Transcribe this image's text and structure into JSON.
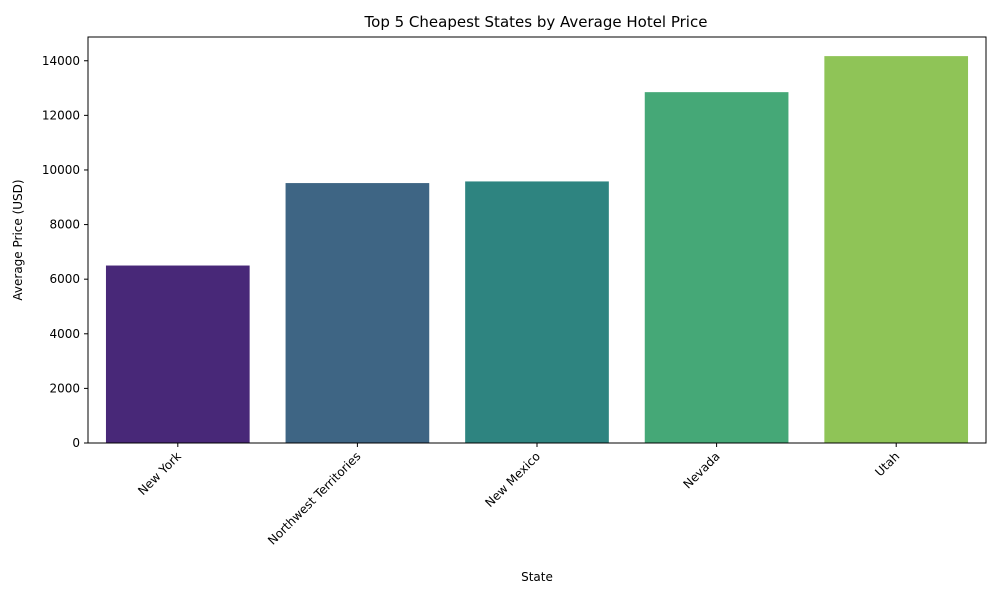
{
  "chart_data": {
    "type": "bar",
    "title": "Top 5 Cheapest States by Average Hotel Price",
    "xlabel": "State",
    "ylabel": "Average Price (USD)",
    "categories": [
      "New York",
      "Northwest Territories",
      "New Mexico",
      "Nevada",
      "Utah"
    ],
    "values": [
      6500,
      9520,
      9580,
      12850,
      14170
    ],
    "colors": [
      "#482878",
      "#3e6584",
      "#2e8480",
      "#45a877",
      "#8fc457"
    ],
    "ylim": [
      0,
      14870
    ],
    "yticks": [
      0,
      2000,
      4000,
      6000,
      8000,
      10000,
      12000,
      14000
    ],
    "grid": false,
    "legend": "none",
    "x_tick_rotation_deg": 45
  }
}
